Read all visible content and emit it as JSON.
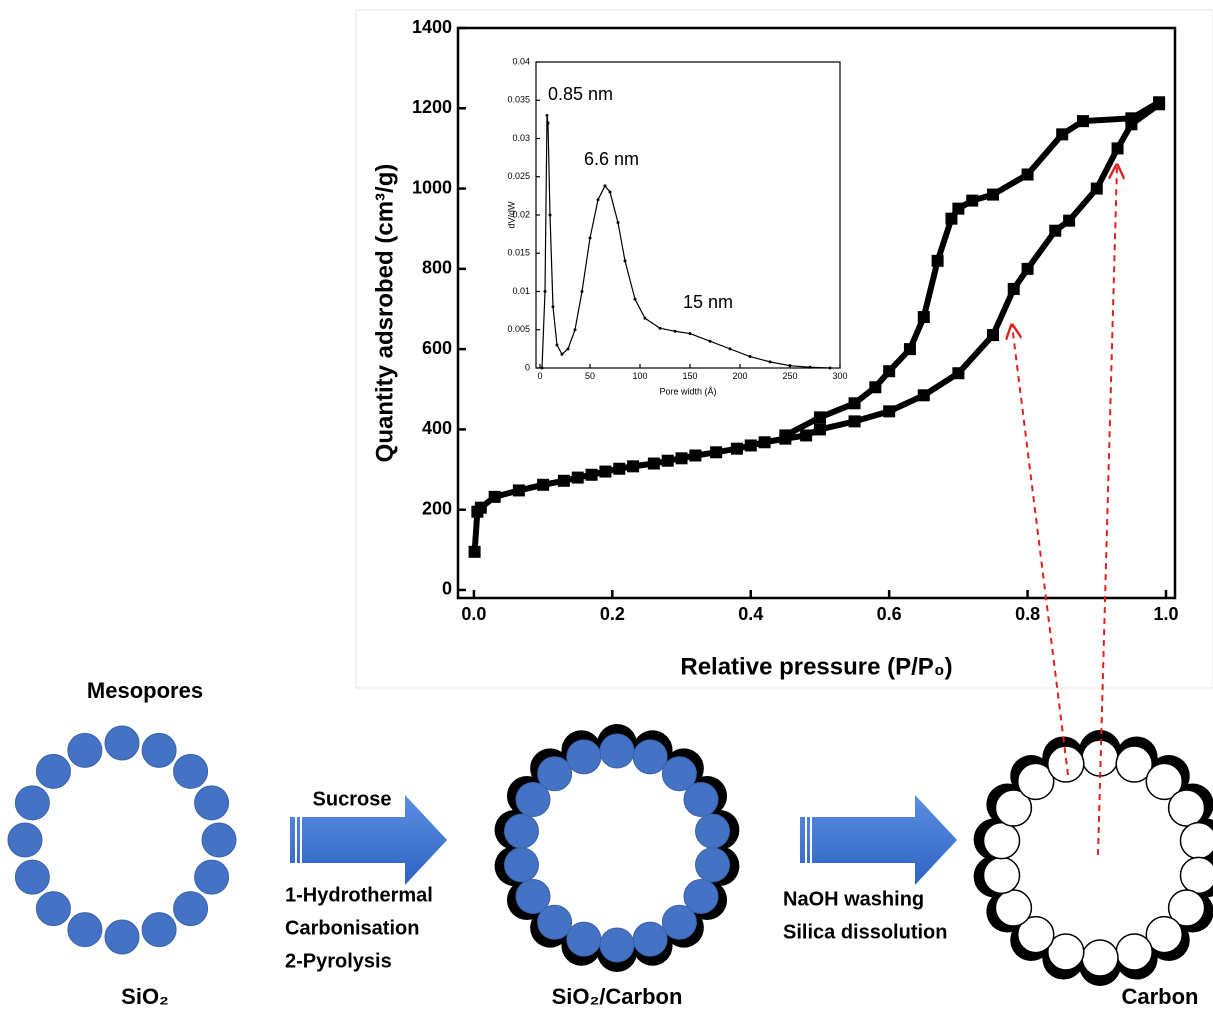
{
  "chart_data": [
    {
      "type": "line",
      "x_label": "Relative pressure (P/P₀)",
      "y_label": "Quantity adsrobed (cm³/g)",
      "xlim": [
        -0.023,
        1.013
      ],
      "ylim": [
        -20,
        1400
      ],
      "xticks": [
        {
          "value": 0,
          "label": "0.0"
        },
        0.2,
        0.4,
        0.6,
        0.8,
        {
          "value": 1,
          "label": "1.0"
        }
      ],
      "yticks": [
        0,
        200,
        400,
        600,
        800,
        1000,
        1200,
        1400
      ],
      "series": [
        {
          "color": "#000000",
          "marker": "square",
          "x": [
            0.001,
            0.005,
            0.01,
            0.03,
            0.065,
            0.1,
            0.13,
            0.15,
            0.17,
            0.19,
            0.21,
            0.23,
            0.26,
            0.28,
            0.3,
            0.32,
            0.35,
            0.38,
            0.4,
            0.42,
            0.45,
            0.48,
            0.5,
            0.55,
            0.6,
            0.65,
            0.7,
            0.75,
            0.78,
            0.8,
            0.84,
            0.86,
            0.9,
            0.93,
            0.95,
            0.99
          ],
          "values": [
            95,
            195,
            205,
            232,
            248,
            262,
            272,
            280,
            287,
            295,
            302,
            308,
            315,
            322,
            328,
            335,
            343,
            352,
            360,
            368,
            377,
            385,
            400,
            420,
            445,
            485,
            540,
            635,
            750,
            800,
            895,
            920,
            1000,
            1100,
            1160,
            1210
          ]
        },
        {
          "color": "#000000",
          "marker": "square",
          "x": [
            0.99,
            0.95,
            0.88,
            0.85,
            0.8,
            0.75,
            0.72,
            0.7,
            0.69,
            0.67,
            0.65,
            0.63,
            0.6,
            0.58,
            0.55,
            0.5,
            0.45
          ],
          "values": [
            1215,
            1175,
            1168,
            1135,
            1035,
            985,
            970,
            950,
            925,
            820,
            680,
            600,
            545,
            505,
            465,
            430,
            385
          ]
        }
      ]
    },
    {
      "type": "line",
      "x_label": "Pore width (Å)",
      "y_label": "dV/dW",
      "xlim": [
        -4,
        300
      ],
      "ylim": [
        0,
        0.04
      ],
      "xticks": [
        0,
        50,
        100,
        150,
        200,
        250,
        300
      ],
      "yticks": [
        0,
        0.005,
        0.01,
        0.015,
        0.02,
        0.025,
        0.03,
        0.035,
        0.04
      ],
      "annotations": [
        "0.85 nm",
        "6.6 nm",
        "15 nm"
      ],
      "series": [
        {
          "color": "#000000",
          "marker": "dot",
          "x": [
            2,
            5,
            7,
            8,
            10,
            13,
            17,
            22,
            28,
            35,
            42,
            50,
            58,
            65,
            70,
            78,
            85,
            95,
            105,
            120,
            135,
            150,
            170,
            190,
            210,
            230,
            250,
            270,
            290
          ],
          "values": [
            0,
            0.01,
            0.033,
            0.032,
            0.02,
            0.008,
            0.003,
            0.0018,
            0.0025,
            0.005,
            0.01,
            0.017,
            0.022,
            0.0238,
            0.023,
            0.019,
            0.014,
            0.009,
            0.0065,
            0.0052,
            0.0048,
            0.0045,
            0.0035,
            0.0025,
            0.0015,
            0.0008,
            0.0003,
            0.0001,
            0
          ]
        }
      ]
    }
  ],
  "diagram": {
    "top_label": "Mesopores",
    "stages": [
      "SiO₂",
      "SiO₂/Carbon",
      "Carbon"
    ],
    "steps": [
      {
        "above": "Sucrose",
        "below": [
          "1-Hydrothermal",
          "Carbonisation",
          "2-Pyrolysis"
        ]
      },
      {
        "below": [
          "NaOH washing",
          "Silica dissolution"
        ]
      }
    ]
  }
}
